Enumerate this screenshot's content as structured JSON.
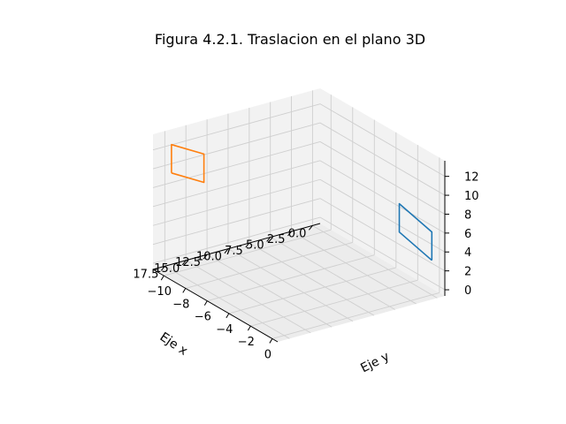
{
  "chart_data": {
    "type": "line",
    "projection": "3d",
    "title": "Figura 4.2.1. Traslacion en el plano 3D",
    "xlabel": "Eje x",
    "ylabel": "Eje y",
    "zlabel": "",
    "xlim": [
      -0.9,
      18.9
    ],
    "ylim": [
      -11,
      0.5
    ],
    "zlim": [
      -0.65,
      13.65
    ],
    "x_ticks": [
      "0.0",
      "2.5",
      "5.0",
      "7.5",
      "10.0",
      "12.5",
      "15.0",
      "17.5"
    ],
    "y_ticks": [
      "−10",
      "−8",
      "−6",
      "−4",
      "−2",
      "0"
    ],
    "z_ticks": [
      "0",
      "2",
      "4",
      "6",
      "8",
      "10",
      "12"
    ],
    "grid": true,
    "series": [
      {
        "color": "#1f77b4",
        "points": [
          [
            0,
            0,
            3
          ],
          [
            0,
            0,
            6
          ],
          [
            0,
            -3,
            7
          ],
          [
            0,
            -3,
            4
          ],
          [
            0,
            0,
            3
          ]
        ]
      },
      {
        "color": "#ff7f0e",
        "points": [
          [
            18,
            -10,
            10
          ],
          [
            18,
            -10,
            13
          ],
          [
            18,
            -7,
            14
          ],
          [
            18,
            -7,
            11
          ],
          [
            18,
            -10,
            10
          ]
        ]
      }
    ]
  }
}
